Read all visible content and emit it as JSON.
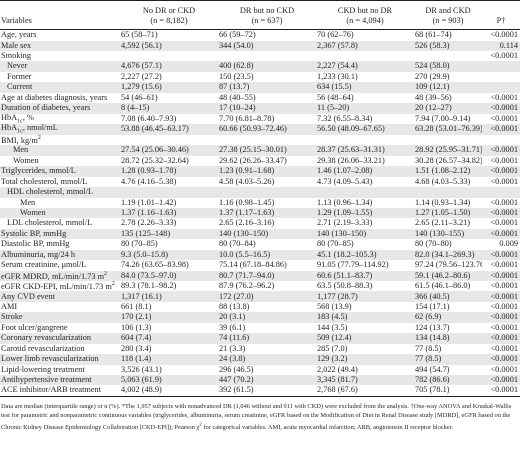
{
  "header": {
    "variables": "Variables",
    "cols": [
      {
        "name": "No DR or CKD",
        "n": "(n = 8,182)"
      },
      {
        "name": "DR but no CKD",
        "n": "(n = 637)"
      },
      {
        "name": "CKD but no DR",
        "n": "(n = 4,094)"
      },
      {
        "name": "DR and CKD",
        "n": "(n = 903)"
      }
    ],
    "p": "P†"
  },
  "rows": [
    {
      "label": "Age, years",
      "level": 0,
      "v": [
        "65 (58–71)",
        "66 (59–72)",
        "70 (62–76)",
        "68 (61–74)"
      ],
      "p": "<0.0001"
    },
    {
      "label": "Male sex",
      "level": 0,
      "v": [
        "4,592 (56.1)",
        "344 (54.0)",
        "2,367 (57.8)",
        "526 (58.3)"
      ],
      "p": "0.114"
    },
    {
      "label": "Smoking",
      "level": 0,
      "v": [
        "",
        "",
        "",
        ""
      ],
      "p": "<0.0001"
    },
    {
      "label": "Never",
      "level": 1,
      "v": [
        "4,676 (57.1)",
        "400 (62.8)",
        "2,227 (54.4)",
        "524 (58.0)"
      ],
      "p": ""
    },
    {
      "label": "Former",
      "level": 1,
      "v": [
        "2,227 (27.2)",
        "150 (23.5)",
        "1,233 (30.1)",
        "270 (29.9)"
      ],
      "p": ""
    },
    {
      "label": "Current",
      "level": 1,
      "v": [
        "1,279 (15.6)",
        "87 (13.7)",
        "634 (15.5)",
        "109 (12.1)"
      ],
      "p": ""
    },
    {
      "label": "Age at diabetes diagnosis, years",
      "level": 0,
      "v": [
        "54 (46–61)",
        "48 (40–55)",
        "56 (48–64)",
        "48 (39–56)"
      ],
      "p": "<0.0001"
    },
    {
      "label": "Duration of diabetes, years",
      "level": 0,
      "v": [
        "8 (4–15)",
        "17 (10–24)",
        "11 (5–20)",
        "20 (12–27)"
      ],
      "p": "<0.0001"
    },
    {
      "label": "HbA1c, %",
      "level": 0,
      "v": [
        "7.08 (6.40–7.93)",
        "7.70 (6.81–8.78)",
        "7.32 (6.55–8.34)",
        "7.94 (7.00–9.14)"
      ],
      "p": "<0.0001"
    },
    {
      "label": "HbA1c, nmol/mL",
      "level": 0,
      "v": [
        "53.88 (46.45–63.17)",
        "60.66 (50.93–72.46)",
        "56.50 (48.09–67.65)",
        "63.28 (53.01–76.39)"
      ],
      "p": "<0.0001"
    },
    {
      "label": "BMI, kg/m2",
      "level": 0,
      "v": [
        "",
        "",
        "",
        ""
      ],
      "p": ""
    },
    {
      "label": "Men",
      "level": 2,
      "v": [
        "27.54 (25.06–30.46)",
        "27.38 (25.15–30.01)",
        "28.37 (25.63–31.31)",
        "28.92 (25.95–31.71)"
      ],
      "p": "<0.0001"
    },
    {
      "label": "Women",
      "level": 2,
      "v": [
        "28.72 (25.32–32.64)",
        "29.62 (26.26–33.47)",
        "29.38 (26.06–33.21)",
        "30.28 (26.57–34.82)"
      ],
      "p": "<0.0001"
    },
    {
      "label": "Triglycerides, mmol/L",
      "level": 0,
      "v": [
        "1.28 (0.93–1.78)",
        "1.23 (0.91–1.68)",
        "1.46 (1.07–2.08)",
        "1.51 (1.08–2.12)"
      ],
      "p": "<0.0001"
    },
    {
      "label": "Total cholesterol, mmol/L",
      "level": 0,
      "v": [
        "4.76 (4.16–5.38)",
        "4.58 (4.03–5.26)",
        "4.73 (4.09–5.43)",
        "4.68 (4.03–5.33)"
      ],
      "p": "<0.0001"
    },
    {
      "label": "HDL cholesterol, mmol/L",
      "level": 1,
      "v": [
        "",
        "",
        "",
        ""
      ],
      "p": ""
    },
    {
      "label": "Men",
      "level": 3,
      "v": [
        "1.19 (1.01–1.42)",
        "1.16 (0.98–1.45)",
        "1.13 (0.96–1.34)",
        "1.14 (0.93–1.34)"
      ],
      "p": "<0.0001"
    },
    {
      "label": "Women",
      "level": 3,
      "v": [
        "1.37 (1.16–1.63)",
        "1.37 (1.17–1.63)",
        "1.29 (1.09–1.55)",
        "1.27 (1.05–1.50)"
      ],
      "p": "<0.0001"
    },
    {
      "label": "LDL cholesterol, mmol/L",
      "level": 1,
      "v": [
        "2.78 (2.26–3.33)",
        "2.65 (2.16–3.16)",
        "2.71 (2.19–3.33)",
        "2.65 (2.11–3.21)"
      ],
      "p": "<0.0001"
    },
    {
      "label": "Systolic BP, mmHg",
      "level": 0,
      "v": [
        "135 (125–148)",
        "140 (130–150)",
        "140 (130–150)",
        "140 (130–155)"
      ],
      "p": "<0.0001"
    },
    {
      "label": "Diastolic BP, mmHg",
      "level": 0,
      "v": [
        "80 (70–85)",
        "80 (70–84)",
        "80 (70–85)",
        "80 (70–80)"
      ],
      "p": "0.009"
    },
    {
      "label": "Albuminuria, mg/24 h",
      "level": 0,
      "v": [
        "9.3 (5.0–15.8)",
        "10.0 (5.5–16.5)",
        "45.1 (18.2–105.3)",
        "82.0 (34.1–269.3)"
      ],
      "p": "<0.0001"
    },
    {
      "label": "Serum creatinine, μmol/L",
      "level": 0,
      "v": [
        "74.26 (63.65–83.98)",
        "75.14 (67.18–84.86)",
        "91.05 (77.79–114.92)",
        "97.24 (79.56–123.76)"
      ],
      "p": "<0.0001"
    },
    {
      "label": "eGFR MDRD, mL/min/1.73 m2",
      "level": 0,
      "v": [
        "84.0 (73.5–97.0)",
        "80.7 (71.7–94.0)",
        "60.6 (51.1–83.7)",
        "59.1 (46.2–80.6)"
      ],
      "p": "<0.0001"
    },
    {
      "label": "eGFR CKD-EPI, mL/min/1.73 m2",
      "level": 0,
      "v": [
        "89.3 (78.1–98.2)",
        "87.9 (76.2–96.2)",
        "63.5 (50.8–88.3)",
        "61.5 (46.1–86.0)"
      ],
      "p": "<0.0001"
    },
    {
      "label": "Any CVD event",
      "level": 0,
      "v": [
        "1,317 (16.1)",
        "172 (27.0)",
        "1,177 (28.7)",
        "366 (40.5)"
      ],
      "p": "<0.0001"
    },
    {
      "label": "AMI",
      "level": 0,
      "v": [
        "661 (8.1)",
        "88 (13.8)",
        "568 (13.9)",
        "154 (17.1)"
      ],
      "p": "<0.0001"
    },
    {
      "label": "Stroke",
      "level": 0,
      "v": [
        "170 (2.1)",
        "20 (3.1)",
        "183 (4.5)",
        "62 (6.9)"
      ],
      "p": "<0.0001"
    },
    {
      "label": "Foot ulcer/gangrene",
      "level": 0,
      "v": [
        "106 (1.3)",
        "39 (6.1)",
        "144 (3.5)",
        "124 (13.7)"
      ],
      "p": "<0.0001"
    },
    {
      "label": "Coronary revascularization",
      "level": 0,
      "v": [
        "604 (7.4)",
        "74 (11.6)",
        "509 (12.4)",
        "134 (14.8)"
      ],
      "p": "<0.0001"
    },
    {
      "label": "Carotid revascularization",
      "level": 0,
      "v": [
        "280 (3.4)",
        "21 (3.3)",
        "285 (7.0)",
        "77 (8.5)"
      ],
      "p": "<0.0001"
    },
    {
      "label": "Lower limb revascularization",
      "level": 0,
      "v": [
        "118 (1.4)",
        "24 (3.8)",
        "129 (3.2)",
        "77 (8.5)"
      ],
      "p": "<0.0001"
    },
    {
      "label": "Lipid-lowering treatment",
      "level": 0,
      "v": [
        "3,526 (43.1)",
        "296 (46.5)",
        "2,022 (49.4)",
        "494 (54.7)"
      ],
      "p": "<0.0001"
    },
    {
      "label": "Antihypertensive treatment",
      "level": 0,
      "v": [
        "5,063 (61.9)",
        "447 (70.2)",
        "3,345 (81.7)",
        "782 (86.6)"
      ],
      "p": "<0.0001"
    },
    {
      "label": "ACE inhibitor/ARB treatment",
      "level": 0,
      "v": [
        "4,002 (48.9)",
        "392 (61.5)",
        "2,768 (67.6)",
        "705 (78.1)"
      ],
      "p": "<0.0001"
    }
  ],
  "footnote": "Data are median (interquartile range) or n (%). *The 1,957 subjects with nonadvanced DR (1,046 without and 911 with CKD) were excluded from the analysis. †One-way ANOVA and Kruskal-Wallis test for parametric and nonparametric continuous variables (triglycerides, albuminuria, serum creatinine, eGFR based on the Modification of Diet in Renal Disease study [MDRD], eGFR based on the Chronic Kidney Disease Epidemiology Collaboration [CKD-EPI]); Pearson χ2 for categorical variables. AMI, acute myocardial infarction; ARB, angiotensin II receptor blocker."
}
